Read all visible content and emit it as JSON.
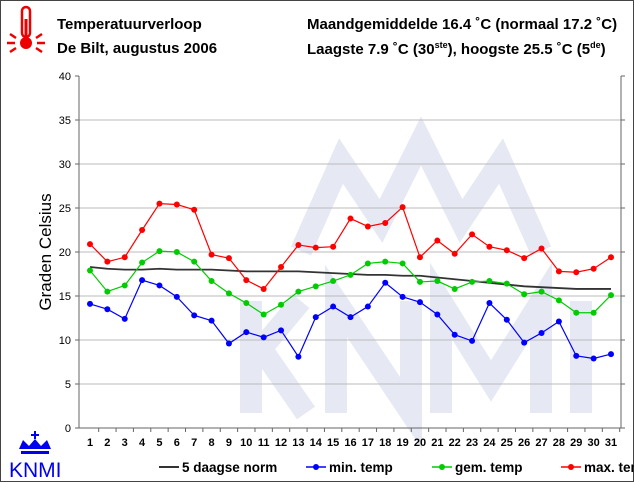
{
  "header": {
    "title": "Temperatuurverloop",
    "location": "De Bilt, augustus 2006",
    "avg_prefix": "Maandgemiddelde 16.4 ˚C (normaal 17.2 ˚C)",
    "low_text": "Laagste 7.9 ˚C (30",
    "low_sup": "ste",
    "high_text": "), hoogste 25.5 ˚C (5",
    "high_sup": "de",
    "high_end": ")"
  },
  "logo": {
    "text": "KNMI"
  },
  "colors": {
    "min": "#0000ff",
    "gem": "#00cc00",
    "max": "#ff0000",
    "norm": "#333333"
  },
  "chart_data": {
    "type": "line",
    "title": "Temperatuurverloop",
    "xlabel": "",
    "ylabel": "Graden Celsius",
    "ylim": [
      0,
      40
    ],
    "yticks": [
      0,
      5,
      10,
      15,
      20,
      25,
      30,
      35,
      40
    ],
    "x": [
      1,
      2,
      3,
      4,
      5,
      6,
      7,
      8,
      9,
      10,
      11,
      12,
      13,
      14,
      15,
      16,
      17,
      18,
      19,
      20,
      21,
      22,
      23,
      24,
      25,
      26,
      27,
      28,
      29,
      30,
      31
    ],
    "grid": true,
    "legend": "bottom",
    "series": [
      {
        "name": "5 daagse norm",
        "key": "norm",
        "markers": false,
        "values": [
          18.3,
          18.1,
          18.0,
          18.0,
          18.1,
          18.0,
          18.0,
          18.0,
          17.9,
          17.8,
          17.8,
          17.8,
          17.8,
          17.7,
          17.6,
          17.5,
          17.4,
          17.4,
          17.3,
          17.3,
          17.1,
          16.9,
          16.7,
          16.5,
          16.3,
          16.1,
          16.0,
          15.9,
          15.8,
          15.8,
          15.8
        ]
      },
      {
        "name": "min. temp",
        "key": "min",
        "markers": true,
        "values": [
          14.1,
          13.5,
          12.4,
          16.8,
          16.2,
          14.9,
          12.8,
          12.2,
          9.6,
          10.9,
          10.3,
          11.1,
          8.1,
          12.6,
          13.8,
          12.6,
          13.8,
          16.5,
          14.9,
          14.3,
          12.9,
          10.6,
          9.9,
          14.2,
          12.3,
          9.7,
          10.8,
          12.1,
          8.2,
          7.9,
          8.4
        ]
      },
      {
        "name": "gem. temp",
        "key": "gem",
        "markers": true,
        "values": [
          17.9,
          15.5,
          16.2,
          18.8,
          20.1,
          20.0,
          18.9,
          16.7,
          15.3,
          14.2,
          12.9,
          14.0,
          15.5,
          16.1,
          16.7,
          17.4,
          18.7,
          18.9,
          18.7,
          16.6,
          16.7,
          15.8,
          16.6,
          16.7,
          16.4,
          15.2,
          15.5,
          14.5,
          13.1,
          13.1,
          15.1
        ]
      },
      {
        "name": "max. temp",
        "key": "max",
        "markers": true,
        "values": [
          20.9,
          18.9,
          19.4,
          22.5,
          25.5,
          25.4,
          24.8,
          19.7,
          19.3,
          16.8,
          15.8,
          18.3,
          20.8,
          20.5,
          20.6,
          23.8,
          22.9,
          23.3,
          25.1,
          19.4,
          21.3,
          19.8,
          22.0,
          20.6,
          20.2,
          19.3,
          20.4,
          17.8,
          17.7,
          18.1,
          19.4
        ]
      }
    ]
  }
}
